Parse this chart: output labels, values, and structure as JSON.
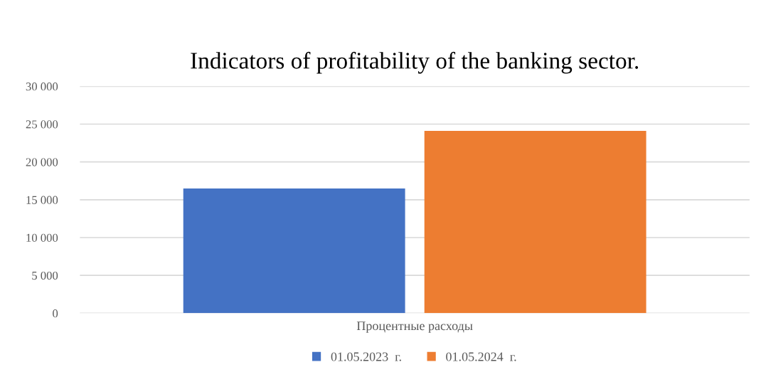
{
  "chart_data": {
    "type": "bar",
    "title": "Indicators of profitability of the banking sector.",
    "categories": [
      "Процентные расходы"
    ],
    "series": [
      {
        "name": "01.05.2023  г.",
        "color": "#4472c4",
        "values": [
          16500
        ]
      },
      {
        "name": "01.05.2024  г.",
        "color": "#ed7d31",
        "values": [
          24100
        ]
      }
    ],
    "ylim": [
      0,
      30000
    ],
    "yticks": [
      0,
      {
        "value": 5000,
        "label": "5 000"
      },
      {
        "value": 10000,
        "label": "10 000"
      },
      {
        "value": 15000,
        "label": "15 000"
      },
      {
        "value": 20000,
        "label": "20 000"
      },
      {
        "value": 25000,
        "label": "25 000"
      },
      {
        "value": 30000,
        "label": "30 000"
      }
    ],
    "grid": "y",
    "legend": "bottom"
  }
}
